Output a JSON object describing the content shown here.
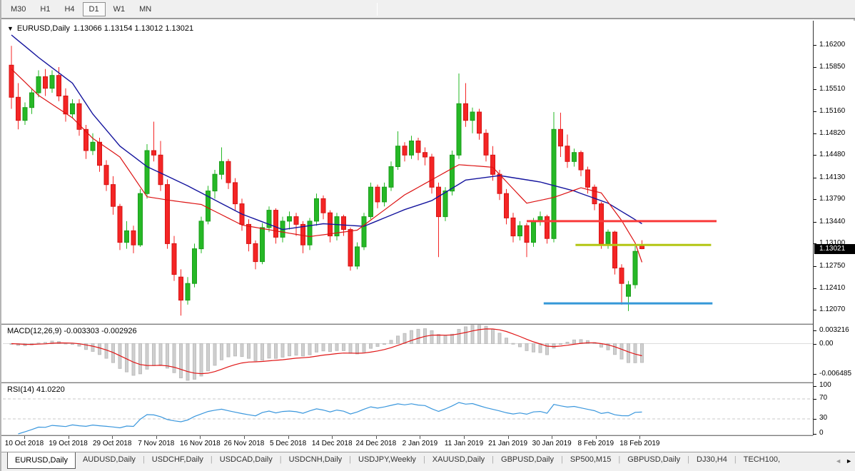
{
  "toolbar": {
    "timeframes": [
      {
        "label": "M30",
        "active": false
      },
      {
        "label": "H1",
        "active": false
      },
      {
        "label": "H4",
        "active": false
      },
      {
        "label": "D1",
        "active": true
      },
      {
        "label": "W1",
        "active": false
      },
      {
        "label": "MN",
        "active": false
      }
    ]
  },
  "chart": {
    "dropdown_icon": "▼",
    "symbol": "EURUSD,Daily",
    "ohlc_text": "1.13066 1.13154 1.13012 1.13021"
  },
  "chart_data": {
    "type": "candlestick",
    "symbol": "EURUSD",
    "period": "Daily",
    "price_range": [
      1.1186,
      1.1655
    ],
    "price_axis_labels": [
      "1.16200",
      "1.15850",
      "1.15510",
      "1.15160",
      "1.14820",
      "1.14480",
      "1.14130",
      "1.13790",
      "1.13440",
      "1.13100",
      "1.12750",
      "1.12410",
      "1.12070"
    ],
    "date_labels": [
      "10 Oct 2018",
      "19 Oct 2018",
      "29 Oct 2018",
      "7 Nov 2018",
      "16 Nov 2018",
      "26 Nov 2018",
      "5 Dec 2018",
      "14 Dec 2018",
      "24 Dec 2018",
      "2 Jan 2019",
      "11 Jan 2019",
      "21 Jan 2019",
      "30 Jan 2019",
      "8 Feb 2019",
      "18 Feb 2019"
    ],
    "current_price": "1.13021",
    "ohlc": [
      [
        1.1588,
        1.1618,
        1.152,
        1.1538
      ],
      [
        1.1538,
        1.156,
        1.1488,
        1.1502
      ],
      [
        1.1502,
        1.153,
        1.1495,
        1.1522
      ],
      [
        1.1522,
        1.1552,
        1.1512,
        1.1545
      ],
      [
        1.1545,
        1.158,
        1.1538,
        1.157
      ],
      [
        1.157,
        1.1582,
        1.154,
        1.1552
      ],
      [
        1.1552,
        1.158,
        1.1545,
        1.1572
      ],
      [
        1.1572,
        1.1585,
        1.1532,
        1.154
      ],
      [
        1.154,
        1.1552,
        1.15,
        1.1512
      ],
      [
        1.1512,
        1.1535,
        1.1505,
        1.1528
      ],
      [
        1.1528,
        1.1535,
        1.1478,
        1.1488
      ],
      [
        1.1488,
        1.1495,
        1.1442,
        1.1455
      ],
      [
        1.1455,
        1.1482,
        1.1448,
        1.1468
      ],
      [
        1.1468,
        1.1475,
        1.1422,
        1.1432
      ],
      [
        1.1432,
        1.144,
        1.1392,
        1.1402
      ],
      [
        1.1402,
        1.1415,
        1.1355,
        1.1368
      ],
      [
        1.1368,
        1.1372,
        1.13,
        1.1312
      ],
      [
        1.1312,
        1.1345,
        1.1302,
        1.133
      ],
      [
        1.133,
        1.1338,
        1.1295,
        1.1308
      ],
      [
        1.1308,
        1.1395,
        1.1305,
        1.1388
      ],
      [
        1.1388,
        1.1465,
        1.138,
        1.1455
      ],
      [
        1.1455,
        1.15,
        1.1438,
        1.1448
      ],
      [
        1.1448,
        1.147,
        1.1392,
        1.1402
      ],
      [
        1.1402,
        1.141,
        1.1302,
        1.131
      ],
      [
        1.131,
        1.1322,
        1.1252,
        1.1262
      ],
      [
        1.1258,
        1.127,
        1.1198,
        1.1222
      ],
      [
        1.1222,
        1.1258,
        1.1215,
        1.1248
      ],
      [
        1.1248,
        1.131,
        1.1242,
        1.1302
      ],
      [
        1.1302,
        1.1352,
        1.1295,
        1.1345
      ],
      [
        1.1345,
        1.14,
        1.134,
        1.1392
      ],
      [
        1.1392,
        1.1425,
        1.138,
        1.1418
      ],
      [
        1.1418,
        1.146,
        1.141,
        1.1438
      ],
      [
        1.1438,
        1.1442,
        1.1395,
        1.1405
      ],
      [
        1.1405,
        1.1412,
        1.1362,
        1.1372
      ],
      [
        1.1372,
        1.138,
        1.133,
        1.134
      ],
      [
        1.134,
        1.1348,
        1.1298,
        1.131
      ],
      [
        1.131,
        1.1315,
        1.127,
        1.1282
      ],
      [
        1.1282,
        1.1342,
        1.1278,
        1.1335
      ],
      [
        1.1335,
        1.1368,
        1.1328,
        1.1362
      ],
      [
        1.1362,
        1.1365,
        1.131,
        1.132
      ],
      [
        1.132,
        1.1352,
        1.1312,
        1.1345
      ],
      [
        1.1345,
        1.136,
        1.1332,
        1.1352
      ],
      [
        1.1352,
        1.1358,
        1.1322,
        1.134
      ],
      [
        1.134,
        1.1345,
        1.1295,
        1.1308
      ],
      [
        1.1308,
        1.135,
        1.13,
        1.1345
      ],
      [
        1.1345,
        1.1388,
        1.1338,
        1.138
      ],
      [
        1.138,
        1.1385,
        1.1348,
        1.1358
      ],
      [
        1.1358,
        1.1362,
        1.1312,
        1.1322
      ],
      [
        1.1322,
        1.1358,
        1.1315,
        1.1352
      ],
      [
        1.1352,
        1.1355,
        1.1322,
        1.1332
      ],
      [
        1.1332,
        1.1335,
        1.1268,
        1.1275
      ],
      [
        1.1275,
        1.1312,
        1.127,
        1.1305
      ],
      [
        1.1305,
        1.1358,
        1.13,
        1.1352
      ],
      [
        1.1352,
        1.1405,
        1.1348,
        1.1398
      ],
      [
        1.1398,
        1.1402,
        1.1365,
        1.1375
      ],
      [
        1.1375,
        1.1405,
        1.1368,
        1.1398
      ],
      [
        1.1398,
        1.1438,
        1.1392,
        1.143
      ],
      [
        1.143,
        1.1485,
        1.1425,
        1.1462
      ],
      [
        1.1462,
        1.1468,
        1.1438,
        1.1448
      ],
      [
        1.1448,
        1.1478,
        1.1442,
        1.147
      ],
      [
        1.147,
        1.1475,
        1.144,
        1.1452
      ],
      [
        1.1452,
        1.146,
        1.1432,
        1.1445
      ],
      [
        1.1445,
        1.145,
        1.1388,
        1.1398
      ],
      [
        1.1398,
        1.1405,
        1.1289,
        1.1352
      ],
      [
        1.1352,
        1.1398,
        1.1345,
        1.1392
      ],
      [
        1.1392,
        1.1455,
        1.1385,
        1.1448
      ],
      [
        1.1448,
        1.1575,
        1.1442,
        1.1528
      ],
      [
        1.1528,
        1.156,
        1.1492,
        1.1502
      ],
      [
        1.1502,
        1.1522,
        1.1482,
        1.1515
      ],
      [
        1.1515,
        1.152,
        1.1472,
        1.1482
      ],
      [
        1.1482,
        1.1488,
        1.1438,
        1.1448
      ],
      [
        1.1448,
        1.1462,
        1.1408,
        1.1418
      ],
      [
        1.1418,
        1.1425,
        1.1378,
        1.1388
      ],
      [
        1.1388,
        1.1395,
        1.134,
        1.135
      ],
      [
        1.135,
        1.1358,
        1.1312,
        1.1322
      ],
      [
        1.1322,
        1.1345,
        1.1315,
        1.1338
      ],
      [
        1.1338,
        1.1342,
        1.1289,
        1.1312
      ],
      [
        1.1312,
        1.135,
        1.1305,
        1.1345
      ],
      [
        1.1345,
        1.136,
        1.1338,
        1.1352
      ],
      [
        1.1352,
        1.1355,
        1.131,
        1.1318
      ],
      [
        1.1318,
        1.1515,
        1.1312,
        1.1488
      ],
      [
        1.1488,
        1.1514,
        1.1445,
        1.1462
      ],
      [
        1.1462,
        1.148,
        1.1428,
        1.1438
      ],
      [
        1.1438,
        1.1458,
        1.143,
        1.1452
      ],
      [
        1.1452,
        1.1455,
        1.1415,
        1.1425
      ],
      [
        1.1425,
        1.143,
        1.1388,
        1.1398
      ],
      [
        1.1398,
        1.1402,
        1.1362,
        1.1372
      ],
      [
        1.1372,
        1.1375,
        1.1302,
        1.131
      ],
      [
        1.131,
        1.1332,
        1.1302,
        1.1328
      ],
      [
        1.1328,
        1.133,
        1.1262,
        1.1272
      ],
      [
        1.1272,
        1.1278,
        1.1215,
        1.1248
      ],
      [
        1.1228,
        1.1252,
        1.1205,
        1.1246
      ],
      [
        1.1246,
        1.1306,
        1.124,
        1.1298
      ],
      [
        1.13066,
        1.13154,
        1.13012,
        1.13021
      ]
    ],
    "ma_slow": {
      "name": "slow-ma",
      "color": "#15159e",
      "points": [
        [
          0,
          1.1635
        ],
        [
          4,
          1.16
        ],
        [
          9,
          1.156
        ],
        [
          12,
          1.1512
        ],
        [
          16,
          1.1462
        ],
        [
          20,
          1.143
        ],
        [
          26,
          1.14
        ],
        [
          34,
          1.1356
        ],
        [
          40,
          1.1332
        ],
        [
          46,
          1.1341
        ],
        [
          52,
          1.1337
        ],
        [
          58,
          1.1363
        ],
        [
          62,
          1.1377
        ],
        [
          67,
          1.1409
        ],
        [
          72,
          1.1416
        ],
        [
          78,
          1.1406
        ],
        [
          83,
          1.1392
        ],
        [
          88,
          1.1373
        ],
        [
          93,
          1.1341
        ]
      ]
    },
    "ma_fast": {
      "name": "fast-ma",
      "color": "#dc1212",
      "points": [
        [
          0,
          1.1582
        ],
        [
          4,
          1.1541
        ],
        [
          9,
          1.1506
        ],
        [
          12,
          1.1474
        ],
        [
          16,
          1.1445
        ],
        [
          20,
          1.1383
        ],
        [
          23,
          1.1378
        ],
        [
          28,
          1.1371
        ],
        [
          34,
          1.1339
        ],
        [
          40,
          1.1328
        ],
        [
          44,
          1.1321
        ],
        [
          51,
          1.1331
        ],
        [
          58,
          1.1386
        ],
        [
          66,
          1.1433
        ],
        [
          71,
          1.1429
        ],
        [
          76,
          1.1373
        ],
        [
          80,
          1.1382
        ],
        [
          84,
          1.1397
        ],
        [
          87,
          1.1389
        ],
        [
          90,
          1.1346
        ],
        [
          92,
          1.1311
        ],
        [
          93,
          1.1281
        ]
      ]
    },
    "hlines": [
      {
        "name": "resistance-line-red",
        "color": "#f93a3a",
        "price": 1.1345,
        "i_start": 76,
        "i_end": 104
      },
      {
        "name": "resistance-line-olive",
        "color": "#b3c613",
        "price": 1.1308,
        "i_start": 83.2,
        "i_end": 103.2
      },
      {
        "name": "support-line-blue",
        "color": "#3598d8",
        "price": 1.1217,
        "i_start": 78.5,
        "i_end": 103.4
      }
    ],
    "colors": {
      "up": "#26b826",
      "up_border": "#1b9e1b",
      "down": "#f42525",
      "down_border": "#d61414",
      "macd_hist": "#cfcfcf",
      "macd_hist_border": "#bdbdbd",
      "macd_signal": "#e01616",
      "rsi": "#3a97dd"
    },
    "macd": {
      "label": "MACD(12,26,9)",
      "values_text": "-0.003303 -0.002926",
      "axis_top": "0.003216",
      "axis_zero": "0.00",
      "axis_bottom": "-0.006485",
      "range": [
        -0.006485,
        0.003216
      ]
    },
    "rsi": {
      "label": "RSI(14)",
      "value_text": "41.0220",
      "levels": [
        70,
        30
      ],
      "axis_labels": [
        "100",
        "70",
        "30",
        "0"
      ]
    }
  },
  "tabs": {
    "items": [
      {
        "label": "EURUSD,Daily",
        "active": true
      },
      {
        "label": "AUDUSD,Daily",
        "active": false
      },
      {
        "label": "USDCHF,Daily",
        "active": false
      },
      {
        "label": "USDCAD,Daily",
        "active": false
      },
      {
        "label": "USDCNH,Daily",
        "active": false
      },
      {
        "label": "USDJPY,Weekly",
        "active": false
      },
      {
        "label": "XAUUSD,Daily",
        "active": false
      },
      {
        "label": "GBPUSD,Daily",
        "active": false
      },
      {
        "label": "SP500,M15",
        "active": false
      },
      {
        "label": "GBPUSD,Daily",
        "active": false
      },
      {
        "label": "DJ30,H4",
        "active": false
      },
      {
        "label": "TECH100,",
        "active": false
      }
    ],
    "scroll_left": "◄",
    "scroll_right": "►"
  }
}
